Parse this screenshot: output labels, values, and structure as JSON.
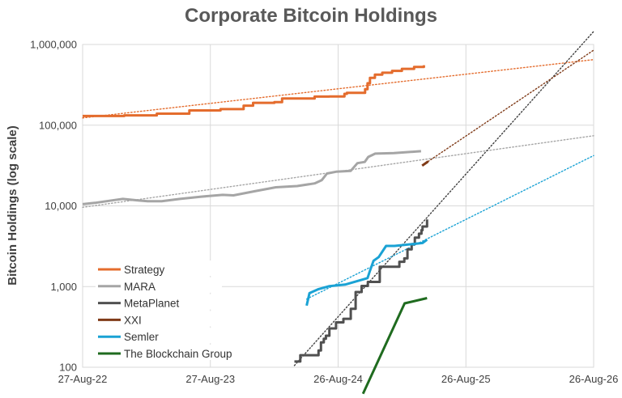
{
  "chart_data": {
    "type": "line",
    "title": "Corporate Bitcoin Holdings",
    "ylabel": "Bitcoin Holdings (log scale)",
    "xlabel": "",
    "y_scale": "log",
    "ylim": [
      100,
      1000000
    ],
    "y_ticks": [
      {
        "value": 100,
        "label": "100"
      },
      {
        "value": 1000,
        "label": "1,000"
      },
      {
        "value": 10000,
        "label": "10,000"
      },
      {
        "value": 100000,
        "label": "100,000"
      },
      {
        "value": 1000000,
        "label": "1,000,000"
      }
    ],
    "xlim": [
      "2022-08-27",
      "2026-08-26"
    ],
    "x_ticks": [
      {
        "value": "2022-08-27",
        "label": "27-Aug-22"
      },
      {
        "value": "2023-08-27",
        "label": "27-Aug-23"
      },
      {
        "value": "2024-08-26",
        "label": "26-Aug-24"
      },
      {
        "value": "2025-08-26",
        "label": "26-Aug-25"
      },
      {
        "value": "2026-08-26",
        "label": "26-Aug-26"
      }
    ],
    "grid": {
      "x": true,
      "y": true
    },
    "legend": "bottom-left",
    "series": [
      {
        "name": "Strategy",
        "color": "#E46C2D",
        "step": true,
        "points": [
          [
            "2022-08-27",
            130000
          ],
          [
            "2022-09-20",
            130000
          ],
          [
            "2022-12-24",
            132500
          ],
          [
            "2023-03-27",
            138955
          ],
          [
            "2023-06-28",
            152333
          ],
          [
            "2023-09-25",
            158245
          ],
          [
            "2023-11-30",
            174530
          ],
          [
            "2023-12-27",
            189150
          ],
          [
            "2024-02-26",
            193000
          ],
          [
            "2024-03-19",
            214246
          ],
          [
            "2024-06-20",
            226331
          ],
          [
            "2024-08-01",
            226500
          ],
          [
            "2024-09-13",
            244800
          ],
          [
            "2024-09-20",
            252220
          ],
          [
            "2024-11-11",
            279420
          ],
          [
            "2024-11-18",
            331200
          ],
          [
            "2024-11-25",
            386700
          ],
          [
            "2024-12-09",
            423650
          ],
          [
            "2024-12-30",
            446400
          ],
          [
            "2025-01-27",
            471107
          ],
          [
            "2025-02-24",
            499096
          ],
          [
            "2025-03-31",
            528185
          ],
          [
            "2025-04-28",
            553555
          ]
        ]
      },
      {
        "name": "MARA",
        "color": "#A5A5A5",
        "step": false,
        "points": [
          [
            "2022-08-27",
            10500
          ],
          [
            "2022-10-01",
            10900
          ],
          [
            "2022-11-20",
            11700
          ],
          [
            "2022-12-20",
            12200
          ],
          [
            "2023-02-01",
            11700
          ],
          [
            "2023-03-01",
            11400
          ],
          [
            "2023-04-10",
            11400
          ],
          [
            "2023-06-01",
            12200
          ],
          [
            "2023-08-01",
            13000
          ],
          [
            "2023-10-01",
            13700
          ],
          [
            "2023-11-01",
            13500
          ],
          [
            "2024-01-01",
            15200
          ],
          [
            "2024-03-01",
            17000
          ],
          [
            "2024-05-01",
            17600
          ],
          [
            "2024-06-20",
            19000
          ],
          [
            "2024-07-10",
            20800
          ],
          [
            "2024-07-25",
            25200
          ],
          [
            "2024-08-20",
            26500
          ],
          [
            "2024-10-01",
            27200
          ],
          [
            "2024-10-20",
            33800
          ],
          [
            "2024-11-10",
            35000
          ],
          [
            "2024-11-20",
            40400
          ],
          [
            "2024-12-10",
            44400
          ],
          [
            "2025-02-01",
            45000
          ],
          [
            "2025-04-20",
            47600
          ]
        ]
      },
      {
        "name": "MetaPlanet",
        "color": "#505050",
        "step": true,
        "points": [
          [
            "2024-04-23",
            117.7
          ],
          [
            "2024-05-10",
            141.1
          ],
          [
            "2024-06-11",
            141.1
          ],
          [
            "2024-07-01",
            161.3
          ],
          [
            "2024-07-08",
            203.7
          ],
          [
            "2024-07-16",
            225.6
          ],
          [
            "2024-07-22",
            245.9
          ],
          [
            "2024-08-01",
            303.1
          ],
          [
            "2024-08-20",
            360.4
          ],
          [
            "2024-09-10",
            398.8
          ],
          [
            "2024-10-01",
            530.7
          ],
          [
            "2024-10-15",
            855.5
          ],
          [
            "2024-11-01",
            1018
          ],
          [
            "2024-11-19",
            1142
          ],
          [
            "2024-12-23",
            1762
          ],
          [
            "2025-02-17",
            2031
          ],
          [
            "2025-03-03",
            2235
          ],
          [
            "2025-03-12",
            2888
          ],
          [
            "2025-03-24",
            3350
          ],
          [
            "2025-04-02",
            4046
          ],
          [
            "2025-04-14",
            4525
          ],
          [
            "2025-04-21",
            5000
          ],
          [
            "2025-04-24",
            5555
          ],
          [
            "2025-05-07",
            6796
          ]
        ]
      },
      {
        "name": "XXI",
        "color": "#7F3A17",
        "step": false,
        "points": [
          [
            "2025-04-23",
            31500
          ],
          [
            "2025-05-10",
            35500
          ]
        ]
      },
      {
        "name": "Semler",
        "color": "#1AA2D4",
        "step": false,
        "points": [
          [
            "2024-05-28",
            581
          ],
          [
            "2024-06-05",
            828
          ],
          [
            "2024-07-01",
            929
          ],
          [
            "2024-08-01",
            1012
          ],
          [
            "2024-09-15",
            1058
          ],
          [
            "2024-11-18",
            1273
          ],
          [
            "2024-11-25",
            1570
          ],
          [
            "2024-12-05",
            2084
          ],
          [
            "2024-12-20",
            2321
          ],
          [
            "2025-01-10",
            3192
          ],
          [
            "2025-02-03",
            3192
          ],
          [
            "2025-04-24",
            3467
          ],
          [
            "2025-05-07",
            3808
          ]
        ]
      },
      {
        "name": "The Blockchain Group",
        "color": "#1F6B1F",
        "step": false,
        "points": [
          [
            "2024-11-05",
            47
          ],
          [
            "2025-03-04",
            620
          ],
          [
            "2025-05-07",
            720
          ]
        ]
      }
    ],
    "trendlines": [
      {
        "series": "Strategy",
        "color": "#E46C2D",
        "style": "dotted",
        "points": [
          [
            "2022-08-27",
            123000
          ],
          [
            "2026-08-26",
            650000
          ]
        ]
      },
      {
        "series": "MARA",
        "color": "#A5A5A5",
        "style": "dotted",
        "points": [
          [
            "2022-08-27",
            9600
          ],
          [
            "2026-08-26",
            74000
          ]
        ]
      },
      {
        "series": "MetaPlanet",
        "color": "#404040",
        "style": "dotted",
        "points": [
          [
            "2024-04-23",
            105
          ],
          [
            "2026-08-26",
            1450000
          ]
        ]
      },
      {
        "series": "XXI",
        "color": "#7F3A17",
        "style": "dotted",
        "points": [
          [
            "2025-05-10",
            35500
          ],
          [
            "2026-08-26",
            850000
          ]
        ]
      },
      {
        "series": "Semler",
        "color": "#1AA2D4",
        "style": "dotted",
        "points": [
          [
            "2024-05-28",
            700
          ],
          [
            "2026-08-26",
            42000
          ]
        ]
      }
    ]
  }
}
